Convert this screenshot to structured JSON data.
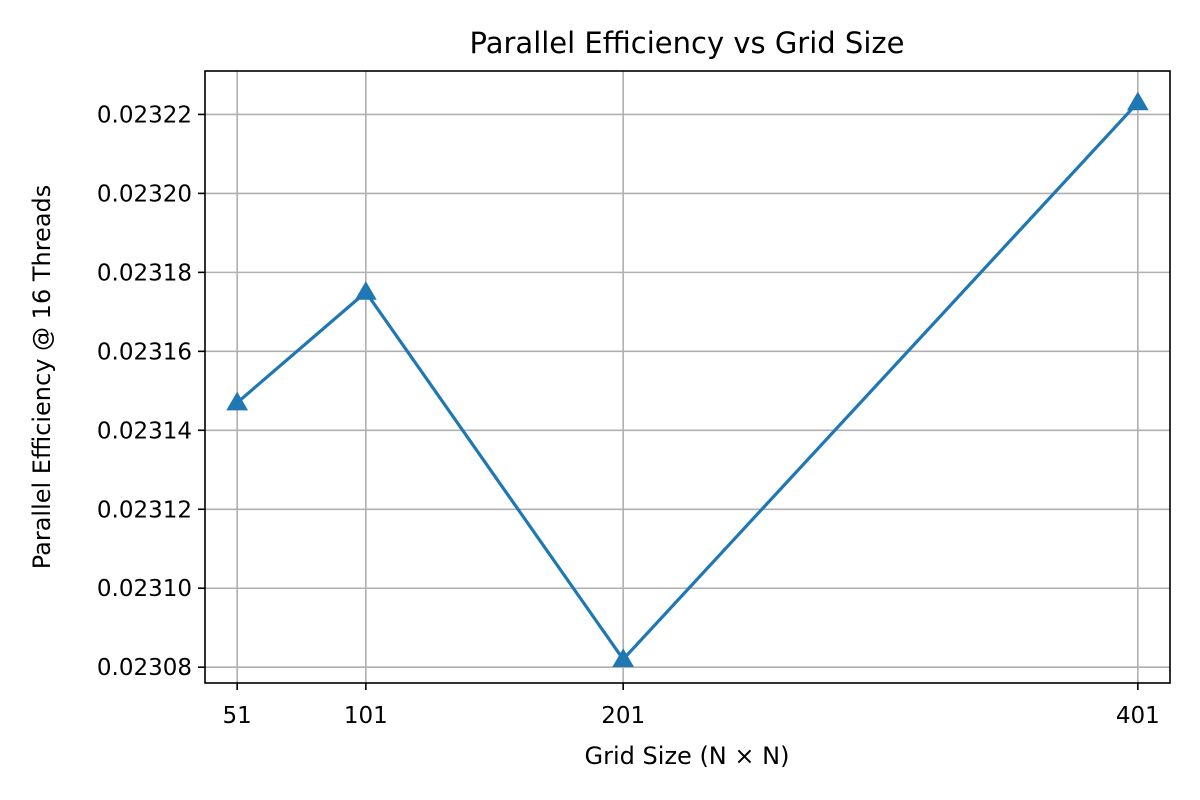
{
  "chart_data": {
    "type": "line",
    "title": "Parallel Efficiency vs Grid Size",
    "xlabel": "Grid Size (N × N)",
    "ylabel": "Parallel Efficiency @ 16 Threads",
    "x": [
      51,
      101,
      201,
      401
    ],
    "x_tick_labels": [
      "51",
      "101",
      "201",
      "401"
    ],
    "y_ticks": [
      0.02308,
      0.0231,
      0.02312,
      0.02314,
      0.02316,
      0.02318,
      0.0232,
      0.02322
    ],
    "y_tick_labels": [
      "0.02308",
      "0.02310",
      "0.02312",
      "0.02314",
      "0.02316",
      "0.02318",
      "0.02320",
      "0.02322"
    ],
    "xlim": [
      38.5,
      413.5
    ],
    "ylim": [
      0.023076,
      0.023231
    ],
    "grid": true,
    "series": [
      {
        "values": [
          0.023147,
          0.023175,
          0.023082,
          0.023223
        ],
        "color": "#1f77b4",
        "marker": "triangle-up"
      }
    ]
  }
}
